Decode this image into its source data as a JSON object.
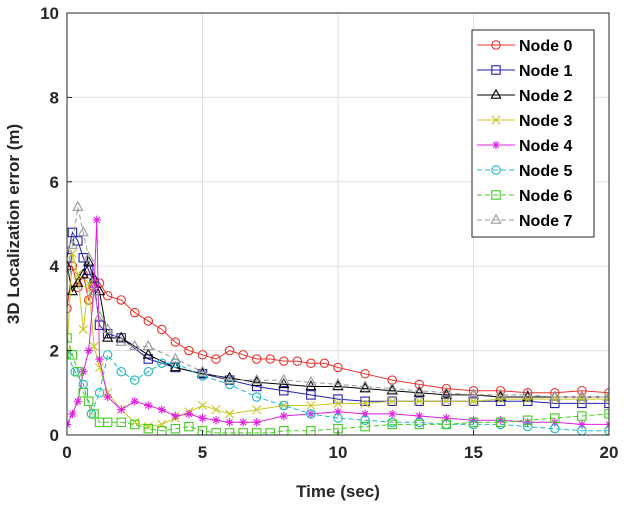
{
  "chart_data": {
    "type": "line",
    "title": "",
    "xlabel": "Time (sec)",
    "ylabel": "3D Localization error (m)",
    "xlim": [
      0,
      20
    ],
    "ylim": [
      0,
      10
    ],
    "xticks": [
      0,
      5,
      10,
      15,
      20
    ],
    "yticks": [
      0,
      2,
      4,
      6,
      8,
      10
    ],
    "xtick_labels": [
      "0",
      "5",
      "10",
      "15",
      "20"
    ],
    "ytick_labels": [
      "0",
      "2",
      "4",
      "6",
      "8",
      "10"
    ],
    "grid": true,
    "legend_position": "top-right",
    "series": [
      {
        "name": "Node 0",
        "color": "#e8332e",
        "marker": "circle",
        "dashed": false,
        "x": [
          0,
          0.2,
          0.4,
          0.6,
          0.8,
          1.0,
          1.2,
          1.5,
          2.0,
          2.5,
          3.0,
          3.5,
          4.0,
          4.5,
          5.0,
          5.5,
          6.0,
          6.5,
          7.0,
          7.5,
          8.0,
          8.5,
          9.0,
          9.5,
          10.0,
          11.0,
          12.0,
          13.0,
          14.0,
          15.0,
          16.0,
          17.0,
          18.0,
          19.0,
          20.0
        ],
        "y": [
          3.0,
          4.0,
          3.5,
          3.8,
          3.2,
          3.5,
          3.6,
          3.3,
          3.2,
          2.9,
          2.7,
          2.5,
          2.2,
          2.0,
          1.9,
          1.8,
          2.0,
          1.9,
          1.8,
          1.8,
          1.75,
          1.75,
          1.7,
          1.7,
          1.6,
          1.45,
          1.3,
          1.2,
          1.1,
          1.05,
          1.05,
          1.0,
          1.0,
          1.05,
          1.0
        ]
      },
      {
        "name": "Node 1",
        "color": "#2222b0",
        "marker": "square",
        "dashed": false,
        "x": [
          0,
          0.2,
          0.4,
          0.6,
          0.8,
          1.0,
          1.2,
          1.5,
          2.0,
          3.0,
          4.0,
          5.0,
          6.0,
          7.0,
          8.0,
          9.0,
          10.0,
          11.0,
          12.0,
          13.0,
          14.0,
          15.0,
          16.0,
          17.0,
          18.0,
          19.0,
          20.0
        ],
        "y": [
          4.2,
          4.8,
          4.6,
          4.2,
          3.9,
          3.6,
          2.6,
          2.4,
          2.3,
          1.8,
          1.6,
          1.45,
          1.3,
          1.15,
          1.05,
          0.95,
          0.85,
          0.8,
          0.8,
          0.8,
          0.8,
          0.8,
          0.8,
          0.8,
          0.75,
          0.75,
          0.75
        ]
      },
      {
        "name": "Node 2",
        "color": "#000000",
        "marker": "triangle",
        "dashed": false,
        "x": [
          0,
          0.2,
          0.4,
          0.6,
          0.8,
          1.0,
          1.2,
          1.5,
          2.0,
          3.0,
          4.0,
          5.0,
          6.0,
          7.0,
          8.0,
          9.0,
          10.0,
          11.0,
          12.0,
          13.0,
          14.0,
          15.0,
          16.0,
          17.0,
          18.0,
          19.0,
          20.0
        ],
        "y": [
          4.0,
          3.4,
          3.6,
          3.8,
          4.1,
          3.7,
          3.4,
          2.3,
          2.3,
          1.9,
          1.6,
          1.45,
          1.35,
          1.25,
          1.2,
          1.15,
          1.15,
          1.1,
          1.05,
          1.0,
          0.95,
          0.95,
          0.9,
          0.9,
          0.9,
          0.9,
          0.9
        ]
      },
      {
        "name": "Node 3",
        "color": "#c8c81e",
        "marker": "x",
        "dashed": false,
        "x": [
          0,
          0.2,
          0.4,
          0.6,
          0.8,
          1.0,
          1.2,
          1.5,
          2.0,
          2.5,
          3.0,
          3.5,
          4.0,
          4.5,
          5.0,
          5.5,
          6.0,
          7.0,
          8.0,
          9.0,
          10.0,
          11.0,
          12.0,
          13.0,
          14.0,
          15.0,
          16.0,
          17.0,
          18.0,
          19.0,
          20.0
        ],
        "y": [
          2.0,
          4.3,
          3.8,
          2.5,
          3.6,
          2.1,
          1.6,
          1.0,
          0.6,
          0.3,
          0.2,
          0.25,
          0.4,
          0.55,
          0.7,
          0.6,
          0.5,
          0.6,
          0.7,
          0.7,
          0.75,
          0.75,
          0.8,
          0.8,
          0.8,
          0.8,
          0.85,
          0.85,
          0.85,
          0.85,
          0.85
        ]
      },
      {
        "name": "Node 4",
        "color": "#e020e0",
        "marker": "star",
        "dashed": false,
        "x": [
          0,
          0.2,
          0.4,
          0.6,
          0.8,
          1.0,
          1.1,
          1.2,
          1.5,
          2.0,
          2.5,
          3.0,
          3.5,
          4.0,
          4.5,
          5.0,
          5.5,
          6.0,
          6.5,
          7.0,
          8.0,
          9.0,
          10.0,
          11.0,
          12.0,
          13.0,
          14.0,
          15.0,
          16.0,
          17.0,
          18.0,
          19.0,
          20.0
        ],
        "y": [
          0.25,
          0.5,
          0.8,
          1.5,
          2.0,
          3.5,
          5.1,
          1.8,
          0.9,
          0.6,
          0.8,
          0.7,
          0.6,
          0.45,
          0.5,
          0.4,
          0.35,
          0.3,
          0.3,
          0.3,
          0.45,
          0.5,
          0.55,
          0.5,
          0.5,
          0.45,
          0.4,
          0.35,
          0.35,
          0.3,
          0.3,
          0.25,
          0.25
        ]
      },
      {
        "name": "Node 5",
        "color": "#1ab8c0",
        "marker": "circle",
        "dashed": true,
        "x": [
          0,
          0.3,
          0.6,
          0.9,
          1.2,
          1.5,
          2.0,
          2.5,
          3.0,
          3.5,
          4.0,
          5.0,
          6.0,
          7.0,
          8.0,
          9.0,
          10.0,
          11.0,
          12.0,
          13.0,
          14.0,
          15.0,
          16.0,
          17.0,
          18.0,
          19.0,
          20.0
        ],
        "y": [
          1.9,
          1.5,
          1.2,
          0.5,
          1.0,
          1.9,
          1.5,
          1.3,
          1.5,
          1.7,
          1.7,
          1.4,
          1.2,
          0.9,
          0.7,
          0.5,
          0.4,
          0.35,
          0.3,
          0.3,
          0.25,
          0.25,
          0.25,
          0.2,
          0.15,
          0.1,
          0.1
        ]
      },
      {
        "name": "Node 6",
        "color": "#44cc22",
        "marker": "square",
        "dashed": true,
        "x": [
          0,
          0.2,
          0.4,
          0.6,
          0.8,
          1.0,
          1.2,
          1.5,
          2.0,
          2.5,
          3.0,
          3.5,
          4.0,
          4.5,
          5.0,
          5.5,
          6.0,
          6.5,
          7.0,
          7.5,
          8.0,
          9.0,
          10.0,
          11.0,
          12.0,
          13.0,
          14.0,
          15.0,
          16.0,
          17.0,
          18.0,
          19.0,
          20.0
        ],
        "y": [
          2.3,
          1.9,
          1.5,
          1.0,
          0.8,
          0.5,
          0.3,
          0.3,
          0.3,
          0.25,
          0.15,
          0.1,
          0.15,
          0.2,
          0.1,
          0.05,
          0.05,
          0.05,
          0.05,
          0.05,
          0.1,
          0.1,
          0.15,
          0.2,
          0.25,
          0.25,
          0.25,
          0.3,
          0.3,
          0.35,
          0.4,
          0.45,
          0.5
        ]
      },
      {
        "name": "Node 7",
        "color": "#999999",
        "marker": "triangle",
        "dashed": true,
        "x": [
          0,
          0.2,
          0.4,
          0.6,
          0.8,
          1.0,
          1.2,
          1.5,
          2.0,
          2.5,
          3.0,
          4.0,
          5.0,
          6.0,
          7.0,
          8.0,
          9.0,
          10.0,
          11.0,
          12.0,
          13.0,
          14.0,
          15.0,
          16.0,
          17.0,
          18.0,
          19.0,
          20.0
        ],
        "y": [
          3.9,
          4.5,
          5.4,
          4.8,
          4.2,
          3.4,
          2.8,
          2.5,
          2.2,
          2.1,
          2.1,
          1.8,
          1.5,
          1.3,
          1.3,
          1.3,
          1.25,
          1.2,
          1.15,
          1.1,
          1.05,
          1.0,
          0.95,
          0.95,
          0.95,
          0.9,
          0.9,
          0.9
        ]
      }
    ]
  }
}
